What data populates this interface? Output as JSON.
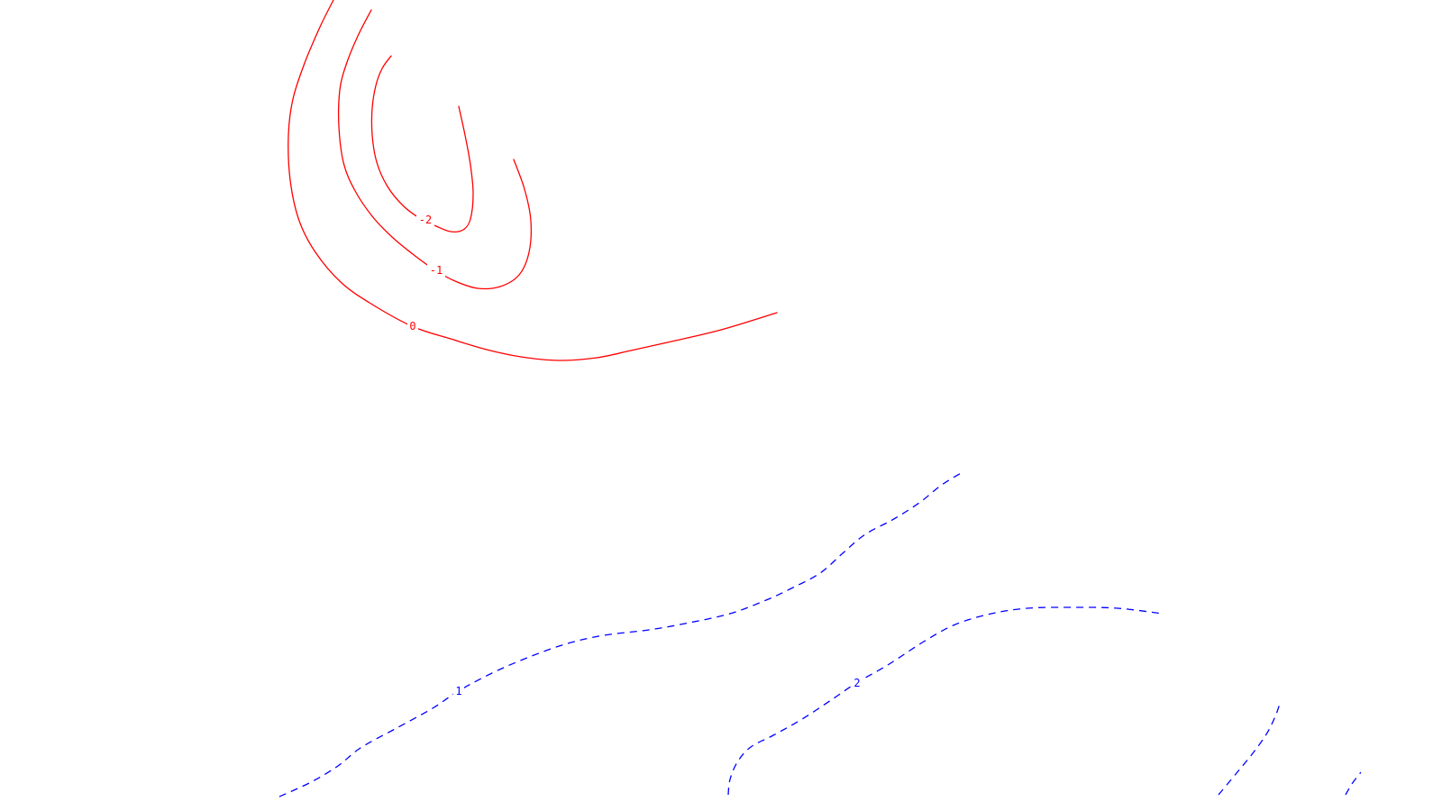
{
  "chart_data": {
    "type": "contour",
    "title": "",
    "xlabel": "",
    "ylabel": "",
    "grid": false,
    "colors": {
      "negative_and_zero": "#ff0000",
      "positive": "#0000ff",
      "background": "#ffffff"
    },
    "line_styles": {
      "negative_and_zero": "solid",
      "positive": "dashed"
    },
    "levels": [
      {
        "value": "-2",
        "sign": "negative",
        "points": [
          [
            434,
            62
          ],
          [
            424,
            76
          ],
          [
            417,
            95
          ],
          [
            413,
            120
          ],
          [
            413,
            150
          ],
          [
            418,
            180
          ],
          [
            430,
            207
          ],
          [
            448,
            229
          ],
          [
            467,
            243
          ],
          [
            484,
            251
          ],
          [
            500,
            257
          ],
          [
            514,
            255
          ],
          [
            522,
            243
          ],
          [
            525,
            215
          ],
          [
            522,
            183
          ],
          [
            516,
            150
          ],
          [
            509,
            118
          ]
        ]
      },
      {
        "value": "-1",
        "sign": "negative",
        "points": [
          [
            412,
            11
          ],
          [
            397,
            40
          ],
          [
            384,
            72
          ],
          [
            377,
            100
          ],
          [
            376,
            140
          ],
          [
            381,
            180
          ],
          [
            393,
            210
          ],
          [
            413,
            240
          ],
          [
            435,
            263
          ],
          [
            458,
            282
          ],
          [
            483,
            300
          ],
          [
            505,
            312
          ],
          [
            530,
            320
          ],
          [
            555,
            318
          ],
          [
            576,
            305
          ],
          [
            587,
            280
          ],
          [
            589,
            245
          ],
          [
            582,
            210
          ],
          [
            570,
            177
          ]
        ]
      },
      {
        "value": "0",
        "sign": "zero",
        "points": [
          [
            370,
            0
          ],
          [
            355,
            30
          ],
          [
            338,
            70
          ],
          [
            325,
            110
          ],
          [
            320,
            150
          ],
          [
            322,
            200
          ],
          [
            332,
            245
          ],
          [
            350,
            280
          ],
          [
            378,
            313
          ],
          [
            410,
            336
          ],
          [
            457,
            362
          ],
          [
            500,
            376
          ],
          [
            540,
            388
          ],
          [
            578,
            396
          ],
          [
            620,
            400
          ],
          [
            662,
            397
          ],
          [
            700,
            389
          ],
          [
            745,
            379
          ],
          [
            800,
            366
          ],
          [
            862,
            347
          ]
        ]
      },
      {
        "value": "1",
        "sign": "positive",
        "points": [
          [
            310,
            884
          ],
          [
            345,
            868
          ],
          [
            375,
            850
          ],
          [
            400,
            830
          ],
          [
            440,
            808
          ],
          [
            480,
            786
          ],
          [
            510,
            766
          ],
          [
            550,
            745
          ],
          [
            590,
            728
          ],
          [
            630,
            714
          ],
          [
            670,
            705
          ],
          [
            720,
            699
          ],
          [
            760,
            692
          ],
          [
            810,
            681
          ],
          [
            850,
            666
          ],
          [
            880,
            652
          ],
          [
            910,
            636
          ],
          [
            935,
            614
          ],
          [
            960,
            593
          ],
          [
            990,
            577
          ],
          [
            1020,
            558
          ],
          [
            1045,
            538
          ],
          [
            1070,
            523
          ]
        ]
      },
      {
        "value": "2",
        "sign": "positive",
        "points": [
          [
            808,
            882
          ],
          [
            810,
            865
          ],
          [
            818,
            846
          ],
          [
            833,
            829
          ],
          [
            858,
            816
          ],
          [
            890,
            798
          ],
          [
            925,
            775
          ],
          [
            950,
            758
          ],
          [
            985,
            738
          ],
          [
            1025,
            712
          ],
          [
            1060,
            693
          ],
          [
            1100,
            681
          ],
          [
            1140,
            675
          ],
          [
            1190,
            674
          ],
          [
            1240,
            675
          ],
          [
            1290,
            681
          ]
        ]
      },
      {
        "value": "",
        "sign": "positive",
        "points": [
          [
            1352,
            882
          ],
          [
            1372,
            858
          ],
          [
            1390,
            836
          ],
          [
            1405,
            815
          ],
          [
            1415,
            795
          ],
          [
            1421,
            778
          ]
        ]
      },
      {
        "value": "",
        "sign": "positive",
        "points": [
          [
            1493,
            882
          ],
          [
            1500,
            870
          ],
          [
            1510,
            857
          ]
        ]
      }
    ],
    "labels": [
      {
        "text": "-2",
        "level": "-2",
        "at": [
          472,
          244
        ]
      },
      {
        "text": "-1",
        "level": "-1",
        "at": [
          484,
          300
        ]
      },
      {
        "text": "0",
        "level": "0",
        "at": [
          458,
          362
        ]
      },
      {
        "text": "1",
        "level": "1",
        "at": [
          509,
          767
        ]
      },
      {
        "text": "2",
        "level": "2",
        "at": [
          951,
          758
        ]
      }
    ]
  }
}
